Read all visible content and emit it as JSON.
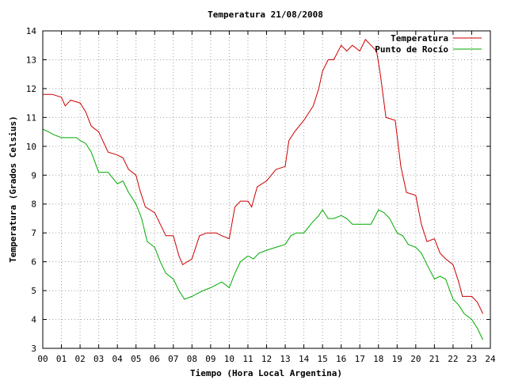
{
  "chart_data": {
    "type": "line",
    "title": "Temperatura 21/08/2008",
    "xlabel": "Tiempo (Hora Local Argentina)",
    "ylabel": "Temperatura (Grados Celsius)",
    "xlim": [
      0,
      24
    ],
    "ylim": [
      3,
      14
    ],
    "x_ticks": [
      "00",
      "01",
      "02",
      "03",
      "04",
      "05",
      "06",
      "07",
      "08",
      "09",
      "10",
      "11",
      "12",
      "13",
      "14",
      "15",
      "16",
      "17",
      "18",
      "19",
      "20",
      "21",
      "22",
      "23",
      "24"
    ],
    "y_ticks": [
      3,
      4,
      5,
      6,
      7,
      8,
      9,
      10,
      11,
      12,
      13,
      14
    ],
    "grid": true,
    "legend_position": "top-right",
    "series": [
      {
        "name": "Temperatura",
        "color": "#cc0000",
        "x": [
          0,
          0.5,
          1,
          1.2,
          1.5,
          2,
          2.3,
          2.6,
          3,
          3.5,
          4,
          4.3,
          4.6,
          5,
          5.2,
          5.5,
          6,
          6.3,
          6.6,
          7,
          7.3,
          7.5,
          8,
          8.4,
          8.8,
          9.3,
          9.6,
          10,
          10.3,
          10.6,
          11,
          11.2,
          11.5,
          12,
          12.5,
          13,
          13.2,
          13.5,
          14,
          14.5,
          14.8,
          15,
          15.3,
          15.6,
          16,
          16.3,
          16.6,
          17,
          17.3,
          17.6,
          17.9,
          18.1,
          18.4,
          18.9,
          19.2,
          19.5,
          20,
          20.3,
          20.6,
          21,
          21.3,
          21.6,
          22,
          22.3,
          22.5,
          23,
          23.3,
          23.6
        ],
        "values": [
          11.8,
          11.8,
          11.7,
          11.4,
          11.6,
          11.5,
          11.2,
          10.7,
          10.5,
          9.8,
          9.7,
          9.6,
          9.2,
          9.0,
          8.5,
          7.9,
          7.7,
          7.3,
          6.9,
          6.9,
          6.2,
          5.9,
          6.1,
          6.9,
          7.0,
          7.0,
          6.9,
          6.8,
          7.9,
          8.1,
          8.1,
          7.9,
          8.6,
          8.8,
          9.2,
          9.3,
          10.2,
          10.5,
          10.9,
          11.4,
          12.0,
          12.6,
          13.0,
          13.0,
          13.5,
          13.3,
          13.5,
          13.3,
          13.7,
          13.5,
          13.3,
          12.5,
          11.0,
          10.9,
          9.3,
          8.4,
          8.3,
          7.3,
          6.7,
          6.8,
          6.3,
          6.1,
          5.9,
          5.3,
          4.8,
          4.8,
          4.6,
          4.2
        ]
      },
      {
        "name": "Punto de Rocío",
        "color": "#00aa00",
        "x": [
          0,
          0.3,
          0.6,
          1,
          1.5,
          1.8,
          2,
          2.3,
          2.6,
          3,
          3.5,
          4,
          4.3,
          4.6,
          5,
          5.3,
          5.6,
          6,
          6.3,
          6.6,
          7,
          7.3,
          7.6,
          8,
          8.3,
          8.6,
          9,
          9.3,
          9.6,
          10,
          10.3,
          10.6,
          11,
          11.3,
          11.6,
          12,
          12.5,
          13,
          13.3,
          13.6,
          14,
          14.5,
          14.8,
          15,
          15.3,
          15.6,
          16,
          16.3,
          16.6,
          17,
          17.3,
          17.6,
          18,
          18.3,
          18.6,
          19,
          19.3,
          19.6,
          20,
          20.3,
          20.6,
          21,
          21.3,
          21.6,
          22,
          22.3,
          22.6,
          23,
          23.3,
          23.6
        ],
        "values": [
          10.6,
          10.5,
          10.4,
          10.3,
          10.3,
          10.3,
          10.2,
          10.1,
          9.8,
          9.1,
          9.1,
          8.7,
          8.8,
          8.4,
          8.0,
          7.5,
          6.7,
          6.5,
          6.0,
          5.6,
          5.4,
          5.0,
          4.7,
          4.8,
          4.9,
          5.0,
          5.1,
          5.2,
          5.3,
          5.1,
          5.6,
          6.0,
          6.2,
          6.1,
          6.3,
          6.4,
          6.5,
          6.6,
          6.9,
          7.0,
          7.0,
          7.4,
          7.6,
          7.8,
          7.5,
          7.5,
          7.6,
          7.5,
          7.3,
          7.3,
          7.3,
          7.3,
          7.8,
          7.7,
          7.5,
          7.0,
          6.9,
          6.6,
          6.5,
          6.3,
          5.9,
          5.4,
          5.5,
          5.4,
          4.7,
          4.5,
          4.2,
          4.0,
          3.7,
          3.3
        ]
      }
    ]
  }
}
